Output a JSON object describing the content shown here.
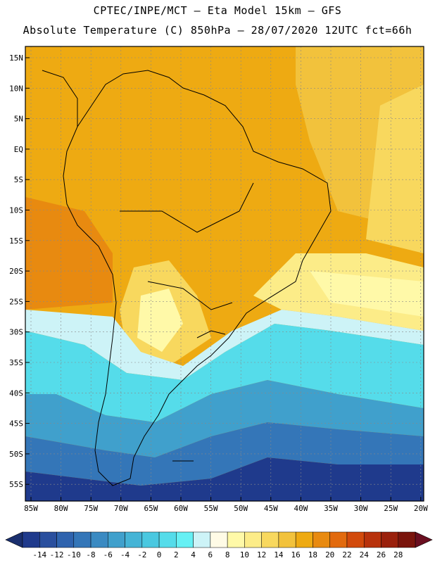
{
  "header": {
    "line1": "CPTEC/INPE/MCT –  Eta Model 15km – GFS",
    "line2": "Absolute Temperature (C) 850hPa – 28/07/2020 12UTC fct=66h"
  },
  "map": {
    "lat_labels": [
      "15N",
      "10N",
      "5N",
      "EQ",
      "5S",
      "10S",
      "15S",
      "20S",
      "25S",
      "30S",
      "35S",
      "40S",
      "45S",
      "50S",
      "55S"
    ],
    "lon_labels": [
      "85W",
      "80W",
      "75W",
      "70W",
      "65W",
      "60W",
      "55W",
      "50W",
      "45W",
      "40W",
      "35W",
      "30W",
      "25W",
      "20W"
    ]
  },
  "colorbar": {
    "labels": [
      "-14",
      "-12",
      "-10",
      "-8",
      "-6",
      "-4",
      "-2",
      "0",
      "2",
      "4",
      "6",
      "8",
      "10",
      "12",
      "14",
      "16",
      "18",
      "20",
      "22",
      "24",
      "26",
      "28"
    ],
    "colors": [
      "#1f3a8c",
      "#2a4f9e",
      "#2f63ae",
      "#3476b8",
      "#3a8ac2",
      "#40a0cc",
      "#45b4d6",
      "#4ac8e0",
      "#55dcea",
      "#66f0f4",
      "#cdf3f7",
      "#fffbe6",
      "#fff9a8",
      "#fcec88",
      "#f8d85e",
      "#f2c23c",
      "#eeaa12",
      "#e88a10",
      "#e26a0e",
      "#d24a0c",
      "#b8320c",
      "#9a200c",
      "#7a140c"
    ],
    "low_arrow_color": "#1a2f6e",
    "high_arrow_color": "#6a0e20"
  },
  "legend_colors": {
    "very_cold": "#1f3a8c",
    "cold": "#3a8ac2",
    "cool": "#4ac8e0",
    "near_zero": "#cdf3f7",
    "mild": "#fff9a8",
    "warm": "#f2c23c",
    "hot": "#eeaa12",
    "very_hot": "#e88a10"
  }
}
